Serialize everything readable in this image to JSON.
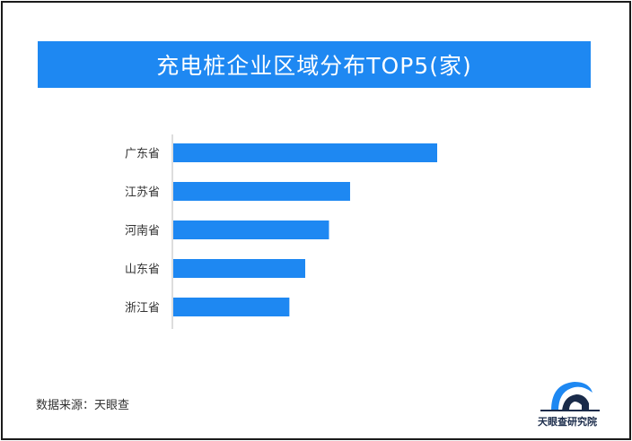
{
  "title": "充电桩企业区域分布TOP5(家)",
  "source": "数据来源：天眼查",
  "logo_text": "天眼查研究院",
  "colors": {
    "bar": "#1e88f2",
    "banner": "#1e88f2",
    "axis": "#bbbbbb"
  },
  "chart_data": {
    "type": "bar",
    "orientation": "horizontal",
    "title": "充电桩企业区域分布TOP5(家)",
    "unit": "家",
    "categories": [
      "广东省",
      "江苏省",
      "河南省",
      "山东省",
      "浙江省"
    ],
    "values": [
      100,
      67,
      59,
      50,
      44
    ],
    "xlabel": "",
    "ylabel": "",
    "grid": false,
    "legend": "none"
  }
}
